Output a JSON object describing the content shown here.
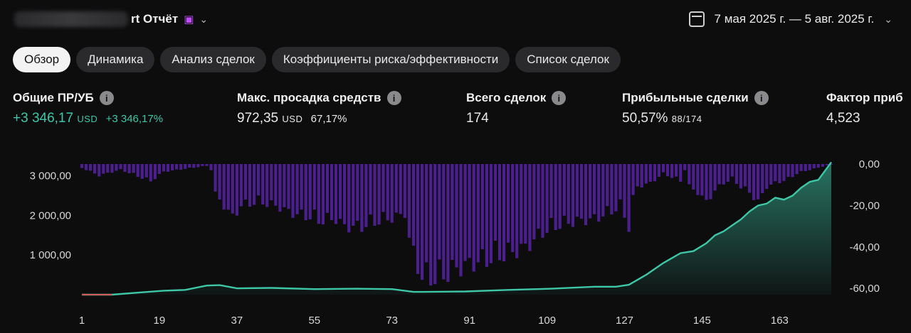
{
  "header": {
    "title": "rt Отчёт",
    "date_range": "7 мая 2025 г. — 5 авг. 2025 г."
  },
  "tabs": [
    {
      "label": "Обзор",
      "active": true
    },
    {
      "label": "Динамика",
      "active": false
    },
    {
      "label": "Анализ сделок",
      "active": false
    },
    {
      "label": "Коэффициенты риска/эффективности",
      "active": false
    },
    {
      "label": "Список сделок",
      "active": false
    }
  ],
  "metrics": {
    "pnl": {
      "label": "Общие ПР/УБ",
      "value": "+3 346,17",
      "unit": "USD",
      "pct": "+3 346,17%"
    },
    "drawdown": {
      "label": "Макс. просадка средств",
      "value": "972,35",
      "unit": "USD",
      "pct": "67,17%"
    },
    "trades": {
      "label": "Всего сделок",
      "value": "174"
    },
    "profitable": {
      "label": "Прибыльные сделки",
      "value": "50,57%",
      "sub": "88/174"
    },
    "factor": {
      "label": "Фактор приб",
      "value": "4,523"
    }
  },
  "chart_data": {
    "type": "line",
    "y_left_ticks": [
      "3 000,00",
      "2 000,00",
      "1 000,00"
    ],
    "y_left_values": [
      3000,
      2000,
      1000
    ],
    "ylim_left": [
      0,
      3300
    ],
    "y_right_ticks": [
      "0,00",
      "-20,00",
      "-40,00",
      "-60,00"
    ],
    "y_right_values": [
      0,
      -20,
      -40,
      -60
    ],
    "ylim_right": [
      -63,
      0
    ],
    "x_ticks": [
      "1",
      "19",
      "37",
      "55",
      "73",
      "91",
      "109",
      "127",
      "145",
      "163"
    ],
    "x_tick_values": [
      1,
      19,
      37,
      55,
      73,
      91,
      109,
      127,
      145,
      163
    ],
    "xlim": [
      1,
      175
    ],
    "colors": {
      "equity": "#3ec7a6",
      "drawdown": "#4b1f8e",
      "start": "#d45a5a"
    },
    "equity": [
      [
        1,
        0
      ],
      [
        8,
        0
      ],
      [
        15,
        60
      ],
      [
        20,
        100
      ],
      [
        25,
        120
      ],
      [
        30,
        230
      ],
      [
        33,
        240
      ],
      [
        37,
        160
      ],
      [
        45,
        170
      ],
      [
        55,
        140
      ],
      [
        65,
        150
      ],
      [
        73,
        140
      ],
      [
        78,
        70
      ],
      [
        80,
        70
      ],
      [
        90,
        80
      ],
      [
        100,
        120
      ],
      [
        110,
        150
      ],
      [
        120,
        200
      ],
      [
        125,
        200
      ],
      [
        128,
        250
      ],
      [
        132,
        500
      ],
      [
        136,
        800
      ],
      [
        140,
        1050
      ],
      [
        143,
        1100
      ],
      [
        146,
        1300
      ],
      [
        148,
        1500
      ],
      [
        150,
        1600
      ],
      [
        152,
        1750
      ],
      [
        154,
        1900
      ],
      [
        156,
        2100
      ],
      [
        158,
        2250
      ],
      [
        160,
        2300
      ],
      [
        162,
        2450
      ],
      [
        164,
        2400
      ],
      [
        166,
        2500
      ],
      [
        168,
        2700
      ],
      [
        170,
        2850
      ],
      [
        172,
        2900
      ],
      [
        175,
        3346
      ]
    ],
    "drawdown_envelope": [
      [
        1,
        -2
      ],
      [
        5,
        -6
      ],
      [
        10,
        -3
      ],
      [
        17,
        -9
      ],
      [
        20,
        -4
      ],
      [
        30,
        -1
      ],
      [
        31,
        -3
      ],
      [
        32,
        -16
      ],
      [
        36,
        -28
      ],
      [
        38,
        -22
      ],
      [
        42,
        -20
      ],
      [
        46,
        -22
      ],
      [
        50,
        -26
      ],
      [
        54,
        -28
      ],
      [
        56,
        -30
      ],
      [
        60,
        -29
      ],
      [
        62,
        -33
      ],
      [
        66,
        -33
      ],
      [
        70,
        -30
      ],
      [
        74,
        -28
      ],
      [
        76,
        -26
      ],
      [
        77,
        -40
      ],
      [
        80,
        -60
      ],
      [
        84,
        -60
      ],
      [
        88,
        -55
      ],
      [
        92,
        -52
      ],
      [
        96,
        -50
      ],
      [
        100,
        -47
      ],
      [
        104,
        -44
      ],
      [
        106,
        -40
      ],
      [
        108,
        -36
      ],
      [
        112,
        -32
      ],
      [
        116,
        -30
      ],
      [
        120,
        -29
      ],
      [
        124,
        -25
      ],
      [
        126,
        -22
      ],
      [
        128,
        -33
      ],
      [
        129,
        -18
      ],
      [
        130,
        -12
      ],
      [
        133,
        -10
      ],
      [
        136,
        -5
      ],
      [
        140,
        -9
      ],
      [
        141,
        -3
      ],
      [
        142,
        -12
      ],
      [
        144,
        -15
      ],
      [
        146,
        -20
      ],
      [
        148,
        -14
      ],
      [
        150,
        -10
      ],
      [
        152,
        -8
      ],
      [
        154,
        -12
      ],
      [
        156,
        -15
      ],
      [
        158,
        -20
      ],
      [
        160,
        -12
      ],
      [
        162,
        -10
      ],
      [
        165,
        -8
      ],
      [
        167,
        -5
      ],
      [
        170,
        -3
      ],
      [
        172,
        -2
      ],
      [
        175,
        0
      ]
    ]
  }
}
